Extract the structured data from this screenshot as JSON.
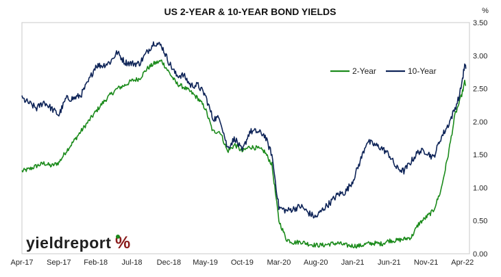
{
  "chart_data": {
    "type": "line",
    "title": "US 2-YEAR & 10-YEAR BOND YIELDS",
    "y_unit": "%",
    "ylim": [
      0,
      3.5
    ],
    "yticks": [
      "0.00",
      "0.50",
      "1.00",
      "1.50",
      "2.00",
      "2.50",
      "3.00",
      "3.50"
    ],
    "xlim": [
      "2017-04-01",
      "2022-04-30"
    ],
    "xticks": [
      {
        "date": "2017-04-01",
        "label": "Apr-17"
      },
      {
        "date": "2017-09-01",
        "label": "Sep-17"
      },
      {
        "date": "2018-02-01",
        "label": "Feb-18"
      },
      {
        "date": "2018-07-01",
        "label": "Jul-18"
      },
      {
        "date": "2018-12-01",
        "label": "Dec-18"
      },
      {
        "date": "2019-05-01",
        "label": "May-19"
      },
      {
        "date": "2019-10-01",
        "label": "Oct-19"
      },
      {
        "date": "2020-03-01",
        "label": "Mar-20"
      },
      {
        "date": "2020-08-01",
        "label": "Aug-20"
      },
      {
        "date": "2021-01-01",
        "label": "Jan-21"
      },
      {
        "date": "2021-06-01",
        "label": "Jun-21"
      },
      {
        "date": "2021-11-01",
        "label": "Nov-21"
      },
      {
        "date": "2022-04-01",
        "label": "Apr-22"
      }
    ],
    "grid": false,
    "legend_position": "top-right",
    "series": [
      {
        "name": "2-Year",
        "color": "#1a8a1a",
        "points": [
          [
            "2017-04-01",
            1.25
          ],
          [
            "2017-05-01",
            1.28
          ],
          [
            "2017-06-01",
            1.33
          ],
          [
            "2017-07-01",
            1.37
          ],
          [
            "2017-08-01",
            1.33
          ],
          [
            "2017-09-01",
            1.38
          ],
          [
            "2017-10-01",
            1.55
          ],
          [
            "2017-11-01",
            1.7
          ],
          [
            "2017-12-01",
            1.85
          ],
          [
            "2018-01-01",
            2.0
          ],
          [
            "2018-02-01",
            2.15
          ],
          [
            "2018-03-01",
            2.28
          ],
          [
            "2018-04-01",
            2.4
          ],
          [
            "2018-05-01",
            2.5
          ],
          [
            "2018-06-01",
            2.55
          ],
          [
            "2018-07-01",
            2.62
          ],
          [
            "2018-08-01",
            2.65
          ],
          [
            "2018-09-01",
            2.8
          ],
          [
            "2018-10-01",
            2.88
          ],
          [
            "2018-11-01",
            2.92
          ],
          [
            "2018-12-01",
            2.75
          ],
          [
            "2019-01-01",
            2.58
          ],
          [
            "2019-02-01",
            2.52
          ],
          [
            "2019-03-01",
            2.45
          ],
          [
            "2019-04-01",
            2.35
          ],
          [
            "2019-05-01",
            2.2
          ],
          [
            "2019-06-01",
            1.85
          ],
          [
            "2019-07-01",
            1.85
          ],
          [
            "2019-08-01",
            1.55
          ],
          [
            "2019-09-01",
            1.65
          ],
          [
            "2019-10-01",
            1.55
          ],
          [
            "2019-11-01",
            1.62
          ],
          [
            "2019-12-01",
            1.6
          ],
          [
            "2020-01-01",
            1.55
          ],
          [
            "2020-02-01",
            1.35
          ],
          [
            "2020-03-01",
            0.5
          ],
          [
            "2020-04-01",
            0.22
          ],
          [
            "2020-05-01",
            0.17
          ],
          [
            "2020-06-01",
            0.18
          ],
          [
            "2020-07-01",
            0.15
          ],
          [
            "2020-08-01",
            0.13
          ],
          [
            "2020-09-01",
            0.13
          ],
          [
            "2020-10-01",
            0.15
          ],
          [
            "2020-11-01",
            0.16
          ],
          [
            "2020-12-01",
            0.13
          ],
          [
            "2021-01-01",
            0.12
          ],
          [
            "2021-02-01",
            0.12
          ],
          [
            "2021-03-01",
            0.15
          ],
          [
            "2021-04-01",
            0.16
          ],
          [
            "2021-05-01",
            0.15
          ],
          [
            "2021-06-01",
            0.2
          ],
          [
            "2021-07-01",
            0.2
          ],
          [
            "2021-08-01",
            0.22
          ],
          [
            "2021-09-01",
            0.25
          ],
          [
            "2021-10-01",
            0.45
          ],
          [
            "2021-11-01",
            0.55
          ],
          [
            "2021-12-01",
            0.65
          ],
          [
            "2022-01-01",
            0.95
          ],
          [
            "2022-02-01",
            1.5
          ],
          [
            "2022-03-01",
            2.1
          ],
          [
            "2022-03-20",
            2.3
          ],
          [
            "2022-04-01",
            2.45
          ],
          [
            "2022-04-10",
            2.6
          ],
          [
            "2022-04-15",
            2.55
          ]
        ]
      },
      {
        "name": "10-Year",
        "color": "#0d2357",
        "points": [
          [
            "2017-04-01",
            2.35
          ],
          [
            "2017-05-01",
            2.28
          ],
          [
            "2017-06-01",
            2.2
          ],
          [
            "2017-07-01",
            2.3
          ],
          [
            "2017-08-01",
            2.2
          ],
          [
            "2017-09-01",
            2.1
          ],
          [
            "2017-10-01",
            2.35
          ],
          [
            "2017-11-01",
            2.35
          ],
          [
            "2017-12-01",
            2.4
          ],
          [
            "2018-01-01",
            2.6
          ],
          [
            "2018-02-01",
            2.85
          ],
          [
            "2018-03-01",
            2.85
          ],
          [
            "2018-04-01",
            2.9
          ],
          [
            "2018-05-01",
            3.05
          ],
          [
            "2018-06-01",
            2.9
          ],
          [
            "2018-07-01",
            2.88
          ],
          [
            "2018-08-01",
            2.88
          ],
          [
            "2018-09-01",
            3.05
          ],
          [
            "2018-10-01",
            3.2
          ],
          [
            "2018-11-01",
            3.15
          ],
          [
            "2018-12-01",
            2.9
          ],
          [
            "2019-01-01",
            2.7
          ],
          [
            "2019-02-01",
            2.7
          ],
          [
            "2019-03-01",
            2.55
          ],
          [
            "2019-04-01",
            2.55
          ],
          [
            "2019-05-01",
            2.4
          ],
          [
            "2019-06-01",
            2.05
          ],
          [
            "2019-07-01",
            2.05
          ],
          [
            "2019-08-01",
            1.6
          ],
          [
            "2019-09-01",
            1.75
          ],
          [
            "2019-10-01",
            1.55
          ],
          [
            "2019-11-01",
            1.85
          ],
          [
            "2019-12-01",
            1.85
          ],
          [
            "2020-01-01",
            1.8
          ],
          [
            "2020-02-01",
            1.5
          ],
          [
            "2020-03-01",
            0.7
          ],
          [
            "2020-04-01",
            0.65
          ],
          [
            "2020-05-01",
            0.68
          ],
          [
            "2020-06-01",
            0.72
          ],
          [
            "2020-07-01",
            0.62
          ],
          [
            "2020-08-01",
            0.55
          ],
          [
            "2020-09-01",
            0.68
          ],
          [
            "2020-10-01",
            0.78
          ],
          [
            "2020-11-01",
            0.9
          ],
          [
            "2020-12-01",
            0.93
          ],
          [
            "2021-01-01",
            1.1
          ],
          [
            "2021-02-01",
            1.4
          ],
          [
            "2021-03-01",
            1.7
          ],
          [
            "2021-04-01",
            1.65
          ],
          [
            "2021-05-01",
            1.6
          ],
          [
            "2021-06-01",
            1.5
          ],
          [
            "2021-07-01",
            1.3
          ],
          [
            "2021-08-01",
            1.25
          ],
          [
            "2021-09-01",
            1.4
          ],
          [
            "2021-10-01",
            1.55
          ],
          [
            "2021-11-01",
            1.55
          ],
          [
            "2021-12-01",
            1.45
          ],
          [
            "2022-01-01",
            1.75
          ],
          [
            "2022-02-01",
            1.95
          ],
          [
            "2022-03-01",
            2.2
          ],
          [
            "2022-03-20",
            2.4
          ],
          [
            "2022-04-01",
            2.65
          ],
          [
            "2022-04-10",
            2.85
          ],
          [
            "2022-04-15",
            2.8
          ]
        ]
      }
    ]
  },
  "logo": {
    "text": "yieldreport",
    "symbol": "%"
  }
}
